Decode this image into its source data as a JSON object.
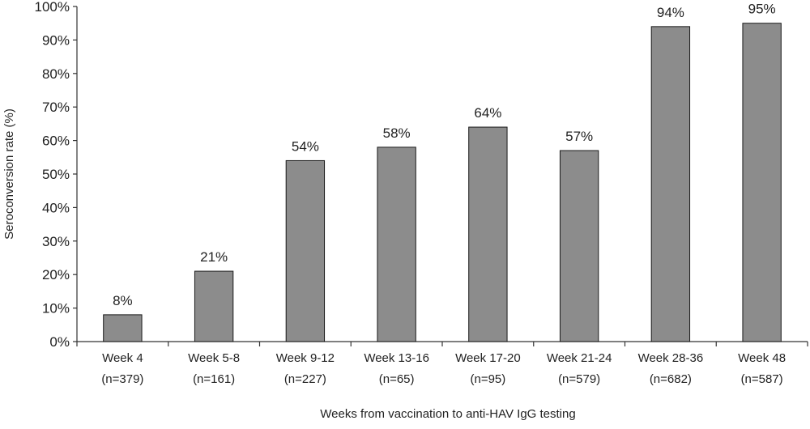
{
  "chart_data": {
    "type": "bar",
    "title": "",
    "xlabel": "Weeks from vaccination to anti-HAV IgG testing",
    "ylabel": "Seroconversion rate (%)",
    "ylim": [
      0,
      100
    ],
    "yticks": [
      0,
      10,
      20,
      30,
      40,
      50,
      60,
      70,
      80,
      90,
      100
    ],
    "ytick_labels": [
      "0%",
      "10%",
      "20%",
      "30%",
      "40%",
      "50%",
      "60%",
      "70%",
      "80%",
      "90%",
      "100%"
    ],
    "grid": false,
    "legend": "none",
    "categories": [
      "Week 4",
      "Week 5-8",
      "Week 9-12",
      "Week 13-16",
      "Week 17-20",
      "Week 21-24",
      "Week 28-36",
      "Week 48"
    ],
    "category_sublabels": [
      "(n=379)",
      "(n=161)",
      "(n=227)",
      "(n=65)",
      "(n=95)",
      "(n=579)",
      "(n=682)",
      "(n=587)"
    ],
    "values": [
      8,
      21,
      54,
      58,
      64,
      57,
      94,
      95
    ],
    "data_labels": [
      "8%",
      "21%",
      "54%",
      "58%",
      "64%",
      "57%",
      "94%",
      "95%"
    ],
    "bar_color": "#8c8c8c",
    "bar_edge_color": "#1a1a1a"
  }
}
